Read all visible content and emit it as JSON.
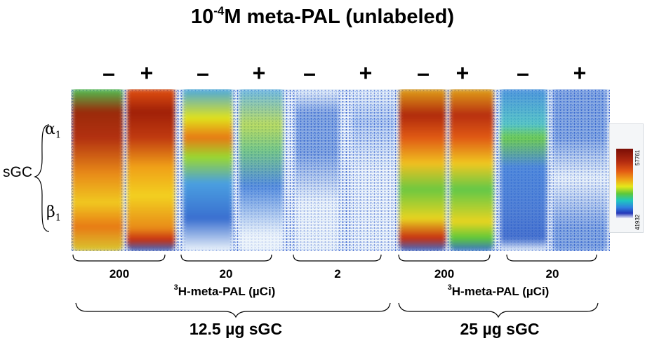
{
  "title": {
    "exponent": "-4",
    "prefix": "10",
    "suffix": "M meta-PAL (unlabeled)"
  },
  "lane_signs": [
    "–",
    "+",
    "–",
    "+",
    "–",
    "+",
    "–",
    "+",
    "–",
    "+"
  ],
  "band_labels": {
    "alpha": {
      "symbol": "α",
      "sub": "1"
    },
    "beta": {
      "symbol": "β",
      "sub": "1"
    },
    "protein": "sGC"
  },
  "colorbar": {
    "max": "57761",
    "min": "41932"
  },
  "dose_labels": [
    "200",
    "20",
    "2",
    "200",
    "20"
  ],
  "tracer_labels": [
    {
      "sup": "3",
      "text": "H-meta-PAL (µCi)"
    },
    {
      "sup": "3",
      "text": "H-meta-PAL (µCi)"
    }
  ],
  "amount_labels": [
    "12.5 µg sGC",
    "25 µg sGC"
  ],
  "colors": {
    "band_high": "#b22a10",
    "band_mid": "#f0c020",
    "band_low": "#5ec83a",
    "background_noise": "#3a6fd0"
  }
}
